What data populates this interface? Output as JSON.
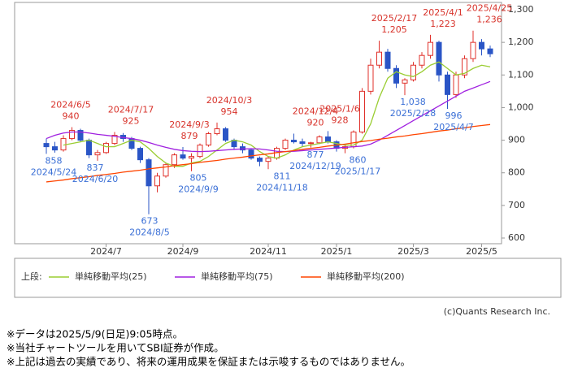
{
  "chart_data": {
    "type": "candlestick",
    "categories": [
      null,
      null,
      null,
      null,
      null,
      null,
      null,
      "2024/7",
      null,
      null,
      null,
      null,
      null,
      null,
      null,
      null,
      "2024/9",
      null,
      null,
      null,
      null,
      null,
      null,
      null,
      null,
      null,
      "2024/11",
      null,
      null,
      null,
      null,
      null,
      null,
      null,
      "2025/1",
      null,
      null,
      null,
      null,
      null,
      null,
      null,
      null,
      "2025/3",
      null,
      null,
      null,
      null,
      null,
      null,
      null,
      "2025/5",
      null
    ],
    "open": [
      890,
      880,
      870,
      905,
      930,
      900,
      855,
      862,
      890,
      915,
      905,
      875,
      840,
      760,
      790,
      825,
      855,
      845,
      850,
      885,
      920,
      935,
      900,
      880,
      870,
      845,
      835,
      845,
      875,
      900,
      895,
      890,
      892,
      910,
      895,
      875,
      880,
      925,
      1050,
      1130,
      1170,
      1120,
      1075,
      1085,
      1130,
      1160,
      1200,
      1100,
      1040,
      1100,
      1150,
      1200,
      1180
    ],
    "high": [
      905,
      895,
      915,
      940,
      935,
      905,
      870,
      895,
      925,
      922,
      910,
      880,
      845,
      800,
      830,
      860,
      879,
      860,
      890,
      925,
      954,
      940,
      905,
      890,
      875,
      850,
      850,
      880,
      905,
      920,
      905,
      895,
      915,
      928,
      900,
      885,
      930,
      1060,
      1150,
      1205,
      1180,
      1130,
      1090,
      1140,
      1170,
      1223,
      1205,
      1110,
      1110,
      1160,
      1236,
      1210,
      1190
    ],
    "low": [
      858,
      862,
      865,
      900,
      895,
      845,
      837,
      858,
      885,
      895,
      870,
      830,
      673,
      740,
      785,
      815,
      840,
      805,
      845,
      880,
      915,
      895,
      870,
      860,
      840,
      820,
      811,
      840,
      870,
      890,
      880,
      877,
      888,
      890,
      865,
      860,
      875,
      920,
      1040,
      1120,
      1110,
      1060,
      1038,
      1080,
      1120,
      1150,
      1080,
      996,
      1030,
      1090,
      1140,
      1160,
      1155
    ],
    "close": [
      880,
      870,
      905,
      930,
      900,
      855,
      862,
      890,
      915,
      905,
      875,
      840,
      760,
      790,
      825,
      855,
      845,
      850,
      885,
      920,
      935,
      900,
      880,
      870,
      845,
      835,
      845,
      875,
      900,
      895,
      890,
      892,
      910,
      895,
      875,
      880,
      925,
      1050,
      1130,
      1170,
      1120,
      1075,
      1085,
      1130,
      1160,
      1200,
      1100,
      1040,
      1100,
      1150,
      1200,
      1180,
      1165
    ],
    "up_color": "#e0312b",
    "down_color": "#2a55c6",
    "series": [
      {
        "name": "単純移動平均(25)",
        "color": "#9acd32",
        "values": [
          null,
          null,
          885,
          890,
          895,
          900,
          890,
          880,
          880,
          890,
          900,
          895,
          875,
          850,
          830,
          820,
          820,
          830,
          835,
          850,
          870,
          890,
          900,
          895,
          885,
          865,
          850,
          845,
          855,
          870,
          880,
          885,
          890,
          895,
          890,
          885,
          885,
          900,
          950,
          1030,
          1090,
          1110,
          1100,
          1095,
          1110,
          1130,
          1140,
          1120,
          1100,
          1105,
          1120,
          1130,
          1125
        ]
      },
      {
        "name": "単純移動平均(75)",
        "color": "#a020e0",
        "values": [
          905,
          915,
          922,
          925,
          925,
          922,
          918,
          915,
          912,
          908,
          905,
          900,
          893,
          885,
          878,
          872,
          868,
          866,
          865,
          866,
          868,
          870,
          872,
          873,
          874,
          873,
          870,
          866,
          865,
          866,
          868,
          870,
          872,
          874,
          876,
          878,
          880,
          882,
          888,
          900,
          915,
          930,
          945,
          960,
          975,
          990,
          1005,
          1020,
          1035,
          1050,
          1060,
          1070,
          1080
        ]
      },
      {
        "name": "単純移動平均(200)",
        "color": "#ff4500",
        "values": [
          772,
          775,
          778,
          782,
          785,
          788,
          792,
          795,
          798,
          802,
          805,
          808,
          812,
          815,
          818,
          822,
          825,
          828,
          832,
          835,
          838,
          842,
          845,
          848,
          852,
          855,
          858,
          862,
          865,
          868,
          872,
          875,
          878,
          882,
          885,
          888,
          892,
          896,
          899,
          903,
          906,
          910,
          913,
          917,
          920,
          924,
          928,
          931,
          935,
          938,
          942,
          945,
          948
        ]
      }
    ],
    "ylim": [
      600,
      1300
    ],
    "yticks": [
      600,
      700,
      800,
      900,
      {
        "value": 1000,
        "label": "1,000"
      },
      {
        "value": 1100,
        "label": "1,100"
      },
      {
        "value": 1200,
        "label": "1,200"
      },
      {
        "value": 1300,
        "label": "1,300"
      }
    ],
    "annotations": [
      {
        "date": "2024/6/5",
        "value": 940,
        "kind": "high"
      },
      {
        "date": "2024/7/17",
        "value": 925,
        "kind": "high"
      },
      {
        "date": "2024/9/3",
        "value": 879,
        "kind": "high"
      },
      {
        "date": "2024/10/3",
        "value": 954,
        "kind": "high"
      },
      {
        "date": "2024/12/4",
        "value": 920,
        "kind": "high"
      },
      {
        "date": "2025/1/6",
        "value": 928,
        "kind": "high"
      },
      {
        "date": "2025/2/17",
        "value": 1205,
        "label": "1,205",
        "kind": "high"
      },
      {
        "date": "2025/4/1",
        "value": 1223,
        "label": "1,223",
        "kind": "high"
      },
      {
        "date": "2025/4/25",
        "value": 1236,
        "label": "1,236",
        "kind": "high"
      },
      {
        "date": "2024/5/24",
        "value": 858,
        "kind": "low"
      },
      {
        "date": "2024/6/20",
        "value": 837,
        "kind": "low"
      },
      {
        "date": "2024/8/5",
        "value": 673,
        "kind": "low"
      },
      {
        "date": "2024/9/9",
        "value": 805,
        "kind": "low"
      },
      {
        "date": "2024/11/18",
        "value": 811,
        "kind": "low"
      },
      {
        "date": "2024/12/19",
        "value": 877,
        "kind": "low"
      },
      {
        "date": "2025/1/17",
        "value": 860,
        "kind": "low"
      },
      {
        "date": "2025/2/28",
        "value": 1038,
        "label": "1,038",
        "kind": "low"
      },
      {
        "date": "2025/4/7",
        "value": 996,
        "kind": "low"
      }
    ],
    "legend_title": "上段:",
    "credit": "(c)Quants Research Inc.",
    "notes": [
      "※データは2025/5/9(日足)9:05時点。",
      "※当社チャートツールを用いてSBI証券が作成。",
      "※上記は過去の実績であり、将来の運用成果を保証または示唆するものではありません。"
    ]
  }
}
